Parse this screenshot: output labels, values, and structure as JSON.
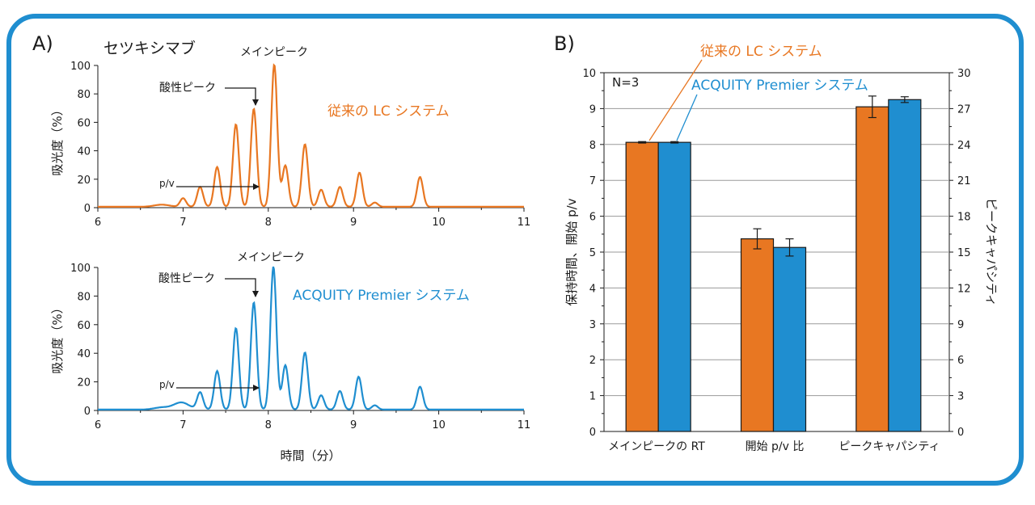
{
  "panel_labels": [
    "A)",
    "B)"
  ],
  "chart_data": [
    {
      "type": "line",
      "panel": "A",
      "subplot": "top",
      "title": "セツキシマブ",
      "series_label": "従来の LC システム",
      "series_color": "#e87722",
      "xlabel": "",
      "ylabel": "吸光度（%）",
      "xlim": [
        6,
        11
      ],
      "ylim": [
        0,
        100
      ],
      "xticks": [
        "6",
        "7",
        "8",
        "9",
        "10",
        "11"
      ],
      "yticks": [
        "0",
        "20",
        "40",
        "60",
        "80",
        "100"
      ],
      "annotations": {
        "main_peak": "メインピーク",
        "acidic_peak": "酸性ピーク",
        "pv": "p/v"
      },
      "peaks": [
        {
          "x": 6.75,
          "y": 1.5
        },
        {
          "x": 7.0,
          "y": 6
        },
        {
          "x": 7.2,
          "y": 14
        },
        {
          "x": 7.4,
          "y": 28
        },
        {
          "x": 7.62,
          "y": 58
        },
        {
          "x": 7.83,
          "y": 69
        },
        {
          "x": 8.07,
          "y": 100
        },
        {
          "x": 8.2,
          "y": 29
        },
        {
          "x": 8.43,
          "y": 44
        },
        {
          "x": 8.62,
          "y": 12
        },
        {
          "x": 8.84,
          "y": 14
        },
        {
          "x": 9.07,
          "y": 24
        },
        {
          "x": 9.25,
          "y": 3
        },
        {
          "x": 9.78,
          "y": 21
        }
      ]
    },
    {
      "type": "line",
      "panel": "A",
      "subplot": "bottom",
      "series_label": "ACQUITY Premier システム",
      "series_color": "#1f8ed0",
      "xlabel": "時間（分）",
      "ylabel": "吸光度（%）",
      "xlim": [
        6,
        11
      ],
      "ylim": [
        0,
        100
      ],
      "xticks": [
        "6",
        "7",
        "8",
        "9",
        "10",
        "11"
      ],
      "yticks": [
        "0",
        "20",
        "40",
        "60",
        "80",
        "100"
      ],
      "annotations": {
        "main_peak": "メインピーク",
        "acidic_peak": "酸性ピーク",
        "pv": "p/v"
      },
      "peaks": [
        {
          "x": 6.75,
          "y": 1.5
        },
        {
          "x": 6.98,
          "y": 5
        },
        {
          "x": 7.2,
          "y": 12
        },
        {
          "x": 7.4,
          "y": 27
        },
        {
          "x": 7.62,
          "y": 57
        },
        {
          "x": 7.83,
          "y": 75
        },
        {
          "x": 8.06,
          "y": 100
        },
        {
          "x": 8.2,
          "y": 31
        },
        {
          "x": 8.43,
          "y": 40
        },
        {
          "x": 8.62,
          "y": 10
        },
        {
          "x": 8.84,
          "y": 13
        },
        {
          "x": 9.06,
          "y": 23
        },
        {
          "x": 9.25,
          "y": 3
        },
        {
          "x": 9.78,
          "y": 16
        }
      ]
    },
    {
      "type": "bar",
      "panel": "B",
      "sample_size": "N=3",
      "categories": [
        "メインピークの RT",
        "開始 p/v 比",
        "ピークキャパシティ"
      ],
      "ylabel": "保持時間、開始 p/v",
      "y2label": "ピークキャパシティ",
      "ylim": [
        0,
        10
      ],
      "y2lim": [
        0,
        30
      ],
      "yticks": [
        "0",
        "1",
        "2",
        "3",
        "4",
        "5",
        "6",
        "7",
        "8",
        "9",
        "10"
      ],
      "y2ticks": [
        "0",
        "3",
        "6",
        "9",
        "12",
        "15",
        "18",
        "21",
        "24",
        "27",
        "30"
      ],
      "grid": true,
      "series": [
        {
          "name": "従来の LC システム",
          "color": "#e87722",
          "values": [
            8.06,
            5.37,
            9.05
          ],
          "errors": [
            0.02,
            0.28,
            0.3
          ]
        },
        {
          "name": "ACQUITY Premier システム",
          "color": "#1f8ed0",
          "values": [
            8.06,
            5.13,
            9.25
          ],
          "errors": [
            0.02,
            0.24,
            0.08
          ]
        }
      ],
      "secondary_axis_values_note_free": [
        27.15,
        27.75
      ]
    }
  ]
}
